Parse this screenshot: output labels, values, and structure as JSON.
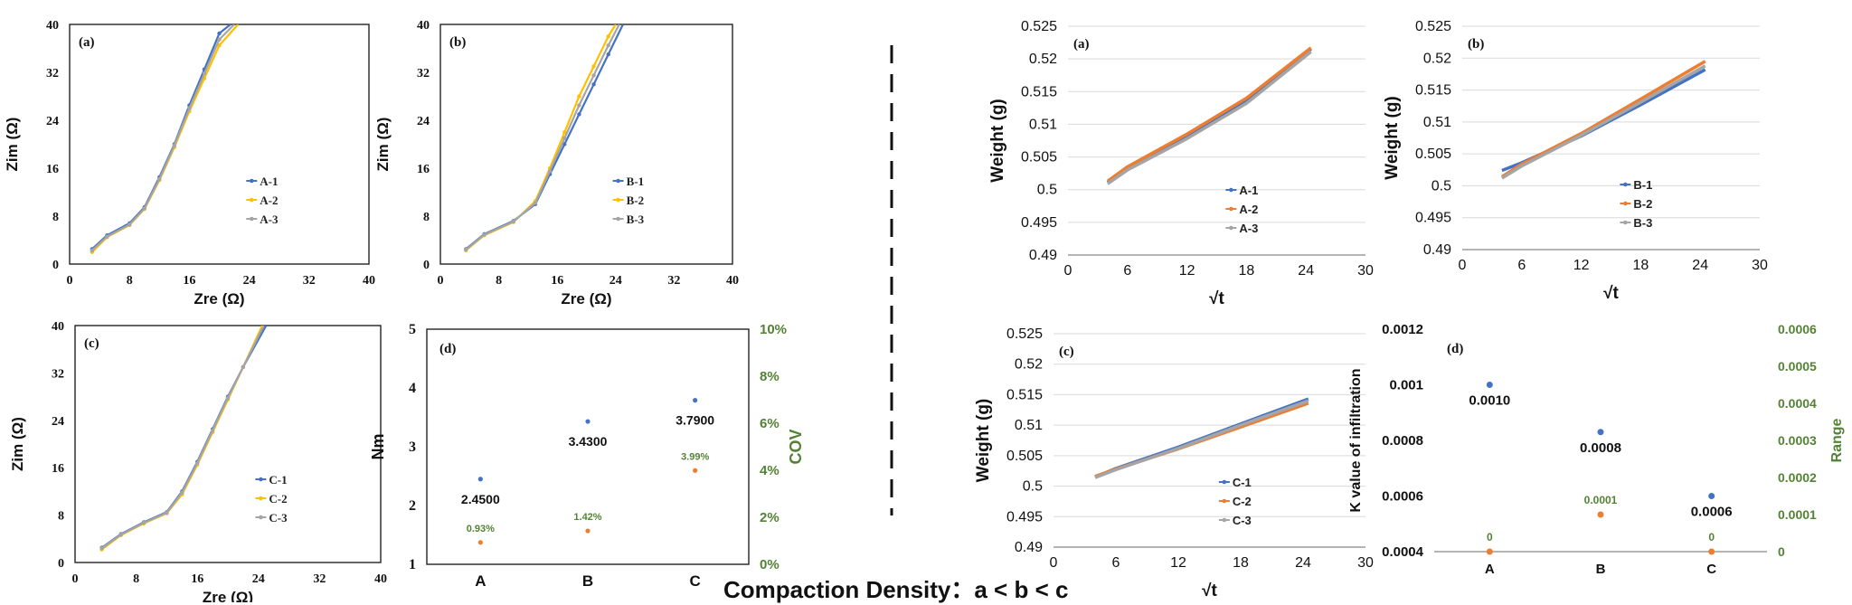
{
  "caption": "Compaction Density：a < b < c",
  "colors": {
    "s1": "#4472c4",
    "s2": "#ffc000",
    "s3": "#a5a5a5",
    "w2": "#ed7d31",
    "green": "#548235",
    "axis": "#000000",
    "grid": "#d9d9d9"
  },
  "panels": [
    {
      "id": "eis-a",
      "chart_data": {
        "type": "line",
        "panel_label": "(a)",
        "title": "",
        "xlabel": "Zre  (Ω)",
        "ylabel": "Zim  (Ω)",
        "xlim": [
          0,
          40
        ],
        "ylim": [
          0,
          40
        ],
        "xticks": [
          0,
          8,
          16,
          24,
          32,
          40
        ],
        "yticks": [
          0,
          8,
          16,
          24,
          32,
          40
        ],
        "tick_labels_x": [
          "0",
          "8",
          "16",
          "24",
          "32",
          "40"
        ],
        "tick_labels_y": [
          "0",
          "8",
          "16",
          "24",
          "32",
          "40"
        ],
        "grid": false,
        "legend_position": "center-right",
        "series": [
          {
            "name": "A-1",
            "color": "#4472c4",
            "x": [
              3,
              5,
              8,
              10,
              12,
              14,
              16,
              18,
              20,
              21.5
            ],
            "y": [
              2.5,
              4.8,
              6.8,
              9.5,
              14.5,
              20,
              26.5,
              32.5,
              38.5,
              40
            ]
          },
          {
            "name": "A-2",
            "color": "#ffc000",
            "x": [
              3,
              5,
              8,
              10,
              12,
              14,
              16,
              18,
              20,
              22.5
            ],
            "y": [
              2,
              4.5,
              6.5,
              9.2,
              14,
              19.5,
              25.5,
              31,
              36.5,
              40
            ]
          },
          {
            "name": "A-3",
            "color": "#a5a5a5",
            "x": [
              3,
              5,
              8,
              10,
              12,
              14,
              16,
              18,
              20,
              22
            ],
            "y": [
              2.3,
              4.6,
              6.6,
              9.3,
              14.2,
              19.8,
              26,
              31.8,
              37.5,
              40
            ]
          }
        ]
      }
    },
    {
      "id": "eis-b",
      "chart_data": {
        "type": "line",
        "panel_label": "(b)",
        "title": "",
        "xlabel": "Zre  (Ω)",
        "ylabel": "Zim  (Ω)",
        "xlim": [
          0,
          40
        ],
        "ylim": [
          0,
          40
        ],
        "xticks": [
          0,
          8,
          16,
          24,
          32,
          40
        ],
        "yticks": [
          0,
          8,
          16,
          24,
          32,
          40
        ],
        "tick_labels_x": [
          "0",
          "8",
          "16",
          "24",
          "32",
          "40"
        ],
        "tick_labels_y": [
          "0",
          "8",
          "16",
          "24",
          "32",
          "40"
        ],
        "grid": false,
        "legend_position": "center-right",
        "series": [
          {
            "name": "B-1",
            "color": "#4472c4",
            "x": [
              3.5,
              6,
              10,
              13,
              15,
              17,
              19,
              21,
              23,
              25
            ],
            "y": [
              2.5,
              5,
              7.2,
              10,
              15,
              20,
              25,
              30,
              35,
              40
            ]
          },
          {
            "name": "B-2",
            "color": "#ffc000",
            "x": [
              3.5,
              6,
              10,
              13,
              15,
              17,
              19,
              21,
              23,
              24
            ],
            "y": [
              2.3,
              4.8,
              7,
              10.5,
              16,
              22,
              28,
              33,
              38,
              40
            ]
          },
          {
            "name": "B-3",
            "color": "#a5a5a5",
            "x": [
              3.5,
              6,
              10,
              13,
              15,
              17,
              19,
              21,
              23,
              24.5
            ],
            "y": [
              2.4,
              4.9,
              7.1,
              10.2,
              15.5,
              21,
              26.5,
              31.5,
              36.5,
              40
            ]
          }
        ]
      }
    },
    {
      "id": "eis-c",
      "chart_data": {
        "type": "line",
        "panel_label": "(c)",
        "title": "",
        "xlabel": "Zre  (Ω)",
        "ylabel": "Zim  (Ω)",
        "xlim": [
          0,
          40
        ],
        "ylim": [
          0,
          40
        ],
        "xticks": [
          0,
          8,
          16,
          24,
          32,
          40
        ],
        "yticks": [
          0,
          8,
          16,
          24,
          32,
          40
        ],
        "tick_labels_x": [
          "0",
          "8",
          "16",
          "24",
          "32",
          "40"
        ],
        "tick_labels_y": [
          "0",
          "8",
          "16",
          "24",
          "32",
          "40"
        ],
        "grid": false,
        "legend_position": "center-right",
        "series": [
          {
            "name": "C-1",
            "color": "#4472c4",
            "x": [
              3.5,
              6,
              9,
              12,
              14,
              16,
              18,
              20,
              22,
              25
            ],
            "y": [
              2.5,
              4.8,
              6.8,
              8.5,
              12,
              17,
              22.5,
              28,
              33,
              40
            ]
          },
          {
            "name": "C-2",
            "color": "#ffc000",
            "x": [
              3.5,
              6,
              9,
              12,
              14,
              16,
              18,
              20,
              22,
              24.5
            ],
            "y": [
              2.2,
              4.6,
              6.6,
              8.3,
              11.5,
              16.5,
              22,
              27.5,
              33,
              40
            ]
          },
          {
            "name": "C-3",
            "color": "#a5a5a5",
            "x": [
              3.5,
              6,
              9,
              12,
              14,
              16,
              18,
              20,
              22,
              24.7
            ],
            "y": [
              2.4,
              4.7,
              6.7,
              8.4,
              11.8,
              16.8,
              22.3,
              27.8,
              33,
              40
            ]
          }
        ]
      }
    },
    {
      "id": "torque-d",
      "chart_data": {
        "type": "scatter",
        "panel_label": "(d)",
        "title": "",
        "xlabel": "",
        "ylabel": "Nm",
        "y2label": "COV",
        "categories": [
          "A",
          "B",
          "C"
        ],
        "ylim": [
          1,
          5
        ],
        "y2lim": [
          0,
          10
        ],
        "yticks": [
          1,
          2,
          3,
          4,
          5
        ],
        "y2ticks": [
          0,
          2,
          4,
          6,
          8,
          10
        ],
        "tick_labels_y": [
          "1",
          "2",
          "3",
          "4",
          "5"
        ],
        "tick_labels_y2": [
          "0%",
          "2%",
          "4%",
          "6%",
          "8%",
          "10%"
        ],
        "grid": false,
        "series": [
          {
            "name": "Nm",
            "axis": "left",
            "color": "#4472c4",
            "values": [
              2.45,
              3.43,
              3.79
            ],
            "labels": [
              "2.4500",
              "3.4300",
              "3.7900"
            ]
          },
          {
            "name": "COV",
            "axis": "right",
            "color": "#ed7d31",
            "values": [
              0.93,
              1.42,
              3.99
            ],
            "labels": [
              "0.93%",
              "1.42%",
              "3.99%"
            ]
          }
        ]
      }
    },
    {
      "id": "weight-a",
      "chart_data": {
        "type": "line",
        "panel_label": "(a)",
        "title": "",
        "xlabel": "√t",
        "ylabel": "Weight  (g)",
        "xlim": [
          0,
          30
        ],
        "ylim": [
          0.49,
          0.525
        ],
        "xticks": [
          0,
          6,
          12,
          18,
          24,
          30
        ],
        "yticks": [
          0.49,
          0.495,
          0.5,
          0.505,
          0.51,
          0.515,
          0.52,
          0.525
        ],
        "tick_labels_x": [
          "0",
          "6",
          "12",
          "18",
          "24",
          "30"
        ],
        "tick_labels_y": [
          "0.49",
          "0.495",
          "0.5",
          "0.505",
          "0.51",
          "0.515",
          "0.52",
          "0.525"
        ],
        "grid": true,
        "legend_position": "lower-right",
        "series": [
          {
            "name": "A-1",
            "color": "#4472c4",
            "x": [
              4,
              6,
              12,
              18,
              24.5
            ],
            "y": [
              0.5011,
              0.5032,
              0.5081,
              0.5136,
              0.5215
            ]
          },
          {
            "name": "A-2",
            "color": "#ed7d31",
            "x": [
              4,
              6,
              12,
              18,
              24.5
            ],
            "y": [
              0.5013,
              0.5035,
              0.5085,
              0.514,
              0.5217
            ]
          },
          {
            "name": "A-3",
            "color": "#a5a5a5",
            "x": [
              4,
              6,
              12,
              18,
              24.5
            ],
            "y": [
              0.5009,
              0.503,
              0.5078,
              0.5132,
              0.5211
            ]
          }
        ]
      }
    },
    {
      "id": "weight-b",
      "chart_data": {
        "type": "line",
        "panel_label": "(b)",
        "title": "",
        "xlabel": "√t",
        "ylabel": "Weight  (g)",
        "xlim": [
          0,
          30
        ],
        "ylim": [
          0.49,
          0.525
        ],
        "xticks": [
          0,
          6,
          12,
          18,
          24,
          30
        ],
        "yticks": [
          0.49,
          0.495,
          0.5,
          0.505,
          0.51,
          0.515,
          0.52,
          0.525
        ],
        "tick_labels_x": [
          "0",
          "6",
          "12",
          "18",
          "24",
          "30"
        ],
        "tick_labels_y": [
          "0.49",
          "0.495",
          "0.5",
          "0.505",
          "0.51",
          "0.515",
          "0.52",
          "0.525"
        ],
        "grid": true,
        "legend_position": "lower-right",
        "series": [
          {
            "name": "B-1",
            "color": "#4472c4",
            "x": [
              4,
              6,
              12,
              18,
              24.5
            ],
            "y": [
              0.5024,
              0.5036,
              0.5078,
              0.5127,
              0.5182
            ]
          },
          {
            "name": "B-2",
            "color": "#ed7d31",
            "x": [
              4,
              6,
              12,
              18,
              24.5
            ],
            "y": [
              0.5014,
              0.5034,
              0.5082,
              0.5136,
              0.5195
            ]
          },
          {
            "name": "B-3",
            "color": "#a5a5a5",
            "x": [
              4,
              6,
              12,
              18,
              24.5
            ],
            "y": [
              0.5012,
              0.5031,
              0.5079,
              0.5131,
              0.5188
            ]
          }
        ]
      }
    },
    {
      "id": "weight-c",
      "chart_data": {
        "type": "line",
        "panel_label": "(c)",
        "title": "",
        "xlabel": "√t",
        "ylabel": "Weight  (g)",
        "xlim": [
          0,
          30
        ],
        "ylim": [
          0.49,
          0.525
        ],
        "xticks": [
          0,
          6,
          12,
          18,
          24,
          30
        ],
        "yticks": [
          0.49,
          0.495,
          0.5,
          0.505,
          0.51,
          0.515,
          0.52,
          0.525
        ],
        "tick_labels_x": [
          "0",
          "6",
          "12",
          "18",
          "24",
          "30"
        ],
        "tick_labels_y": [
          "0.49",
          "0.495",
          "0.5",
          "0.505",
          "0.51",
          "0.515",
          "0.52",
          "0.525"
        ],
        "grid": true,
        "legend_position": "lower-right",
        "series": [
          {
            "name": "C-1",
            "color": "#4472c4",
            "x": [
              4,
              6,
              12,
              18,
              24.5
            ],
            "y": [
              0.5015,
              0.5029,
              0.5064,
              0.5102,
              0.5143
            ]
          },
          {
            "name": "C-2",
            "color": "#ed7d31",
            "x": [
              4,
              6,
              12,
              18,
              24.5
            ],
            "y": [
              0.5016,
              0.5028,
              0.5061,
              0.5097,
              0.5136
            ]
          },
          {
            "name": "C-3",
            "color": "#a5a5a5",
            "x": [
              4,
              6,
              12,
              18,
              24.5
            ],
            "y": [
              0.5014,
              0.5027,
              0.5062,
              0.51,
              0.514
            ]
          }
        ]
      }
    },
    {
      "id": "k-value-d",
      "chart_data": {
        "type": "scatter",
        "panel_label": "(d)",
        "title": "",
        "xlabel": "",
        "ylabel": "K value of infiltration",
        "y2label": "Range",
        "categories": [
          "A",
          "B",
          "C"
        ],
        "ylim": [
          0.0004,
          0.0012
        ],
        "y2lim": [
          0,
          0.0006
        ],
        "yticks": [
          0.0004,
          0.0006,
          0.0008,
          0.001,
          0.0012
        ],
        "y2ticks": [
          0,
          0.0001,
          0.0002,
          0.0003,
          0.0004,
          0.0005,
          0.0006
        ],
        "tick_labels_y": [
          "0.0004",
          "0.0006",
          "0.0008",
          "0.001",
          "0.0012"
        ],
        "tick_labels_y2": [
          "0",
          "0.0001",
          "0.0002",
          "0.0003",
          "0.0004",
          "0.0005",
          "0.0006"
        ],
        "grid": false,
        "series": [
          {
            "name": "K value",
            "axis": "left",
            "color": "#4472c4",
            "values": [
              0.001,
              0.00083,
              0.0006
            ],
            "labels": [
              "0.0010",
              "0.0008",
              "0.0006"
            ]
          },
          {
            "name": "Range",
            "axis": "right",
            "color": "#ed7d31",
            "values": [
              0,
              0.0001,
              0
            ],
            "labels": [
              "0",
              "0.0001",
              "0"
            ]
          }
        ]
      }
    }
  ]
}
